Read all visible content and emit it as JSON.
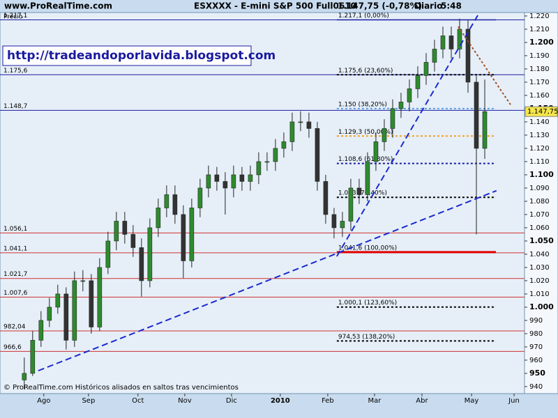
{
  "header": {
    "site": "www.ProRealTime.com",
    "instrument": "ESXXXX - E-mini S&P 500 Full0610",
    "last": "1.147,75 (-0,78%)",
    "period": "Diario",
    "time": "5:48"
  },
  "chart_data": {
    "type": "candlestick",
    "y_label": "Precio",
    "url": "http://tradeandoporlavida.blogspot.com",
    "footer": "© ProRealTime.com Históricos alisados en saltos tras vencimientos",
    "open": [
      945,
      950,
      975,
      990,
      1000,
      1010,
      975,
      1020,
      1020,
      985,
      1030,
      1050,
      1065,
      1055,
      1045,
      1020,
      1060,
      1075,
      1085,
      1070,
      1035,
      1075,
      1090,
      1100,
      1095,
      1090,
      1100,
      1095,
      1100,
      1110,
      1110,
      1120,
      1125,
      1140,
      1140,
      1135,
      1095,
      1070,
      1060,
      1065,
      1090,
      1085,
      1110,
      1125,
      1135,
      1150,
      1155,
      1165,
      1175,
      1185,
      1195,
      1205,
      1195,
      1210,
      1170,
      1120
    ],
    "high": [
      962,
      982,
      997,
      1007,
      1017,
      1015,
      1027,
      1028,
      1025,
      1037,
      1057,
      1072,
      1072,
      1062,
      1052,
      1067,
      1082,
      1092,
      1092,
      1077,
      1082,
      1097,
      1107,
      1106,
      1102,
      1107,
      1106,
      1107,
      1117,
      1117,
      1127,
      1132,
      1147,
      1148,
      1147,
      1140,
      1100,
      1075,
      1072,
      1097,
      1097,
      1117,
      1132,
      1142,
      1157,
      1162,
      1172,
      1182,
      1192,
      1202,
      1212,
      1212,
      1218,
      1217,
      1175,
      1172
    ],
    "low": [
      938,
      948,
      970,
      985,
      995,
      968,
      970,
      1012,
      980,
      982,
      1025,
      1043,
      1048,
      1038,
      1008,
      1015,
      1053,
      1068,
      1063,
      1022,
      1030,
      1068,
      1083,
      1088,
      1070,
      1083,
      1088,
      1088,
      1093,
      1103,
      1103,
      1113,
      1118,
      1133,
      1128,
      1088,
      1063,
      1052,
      1053,
      1058,
      1078,
      1080,
      1103,
      1118,
      1128,
      1143,
      1148,
      1158,
      1168,
      1178,
      1188,
      1188,
      1188,
      1162,
      1055,
      1112
    ],
    "close": [
      950,
      975,
      990,
      1000,
      1010,
      975,
      1020,
      1020,
      985,
      1030,
      1050,
      1065,
      1055,
      1045,
      1020,
      1060,
      1075,
      1085,
      1070,
      1035,
      1075,
      1090,
      1100,
      1095,
      1090,
      1100,
      1095,
      1100,
      1110,
      1110,
      1120,
      1125,
      1140,
      1140,
      1135,
      1095,
      1070,
      1060,
      1065,
      1090,
      1085,
      1110,
      1125,
      1135,
      1150,
      1155,
      1165,
      1175,
      1185,
      1195,
      1205,
      1195,
      1210,
      1170,
      1120,
      1147.75
    ],
    "up_color": "#2e8b2e",
    "down_color": "#333333",
    "xlim": [
      -2.9,
      59.75
    ],
    "xticks": [
      {
        "value": 2.33,
        "label": "Ago"
      },
      {
        "value": 7.67,
        "label": "Sep"
      },
      {
        "value": 13.58,
        "label": "Oct"
      },
      {
        "value": 19.17,
        "label": "Nov"
      },
      {
        "value": 24.75,
        "label": "Dic"
      },
      {
        "value": 30.58,
        "label": "2010"
      },
      {
        "value": 36.25,
        "label": "Feb"
      },
      {
        "value": 41.83,
        "label": "Mar"
      },
      {
        "value": 47.5,
        "label": "Abr"
      },
      {
        "value": 53.42,
        "label": "May"
      },
      {
        "value": 58.5,
        "label": "Jun"
      }
    ],
    "ylim": [
      934.7,
      1222.6
    ],
    "yticks": [
      940,
      950,
      960,
      970,
      980,
      990,
      {
        "value": 1000,
        "label": "1.000"
      },
      {
        "value": 1010,
        "label": "1.010"
      },
      {
        "value": 1020,
        "label": "1.020"
      },
      {
        "value": 1030,
        "label": "1.030"
      },
      {
        "value": 1040,
        "label": "1.040"
      },
      {
        "value": 1050,
        "label": "1.050"
      },
      {
        "value": 1060,
        "label": "1.060"
      },
      {
        "value": 1070,
        "label": "1.070"
      },
      {
        "value": 1080,
        "label": "1.080"
      },
      {
        "value": 1090,
        "label": "1.090"
      },
      {
        "value": 1100,
        "label": "1.100"
      },
      {
        "value": 1110,
        "label": "1.110"
      },
      {
        "value": 1120,
        "label": "1.120"
      },
      {
        "value": 1130,
        "label": "1.130"
      },
      {
        "value": 1140,
        "label": "1.140"
      },
      {
        "value": 1150,
        "label": "1.150"
      },
      {
        "value": 1160,
        "label": "1.160"
      },
      {
        "value": 1170,
        "label": "1.170"
      },
      {
        "value": 1180,
        "label": "1.180"
      },
      {
        "value": 1190,
        "label": "1.190"
      },
      {
        "value": 1200,
        "label": "1.200"
      },
      {
        "value": 1210,
        "label": "1.210"
      },
      {
        "value": 1220,
        "label": "1.220"
      }
    ],
    "last_price": {
      "value": 1147.75,
      "label": "1.147,75"
    },
    "levels": [
      {
        "value": 1217.1,
        "label": "1.217,1",
        "color": "#1a1aa0"
      },
      {
        "value": 1175.6,
        "label": "1.175,6",
        "color": "#1a1aa0"
      },
      {
        "value": 1148.7,
        "label": "1.148,7",
        "color": "#1a1aa0"
      },
      {
        "value": 1056.1,
        "label": "1.056,1",
        "color": "#d03030"
      },
      {
        "value": 1041.1,
        "label": "1.041,1",
        "color": "#d03030"
      },
      {
        "value": 1021.7,
        "label": "1.021,7",
        "color": "#d03030"
      },
      {
        "value": 1007.6,
        "label": "1.007,6",
        "color": "#d03030"
      },
      {
        "value": 982.04,
        "label": "982,04",
        "color": "#d03030"
      },
      {
        "value": 966.6,
        "label": "966,6",
        "color": "#d03030"
      }
    ],
    "fibonacci": [
      {
        "value": 1217.1,
        "label": "1.217,1 (0,00%)",
        "color": "#1a1aa0",
        "style": "solid"
      },
      {
        "value": 1175.6,
        "label": "1.175,6 (23,60%)",
        "color": "#000000",
        "style": "dotted"
      },
      {
        "value": 1150,
        "label": "1.150 (38,20%)",
        "color": "#5aa0e0",
        "style": "dotted"
      },
      {
        "value": 1129.3,
        "label": "1.129,3 (50,00%)",
        "color": "#f0a020",
        "style": "dotted"
      },
      {
        "value": 1108.6,
        "label": "1.108,6 (61,80%)",
        "color": "#1a1aa0",
        "style": "dotted"
      },
      {
        "value": 1083,
        "label": "1.083 (76,40%)",
        "color": "#000000",
        "style": "dotted"
      },
      {
        "value": 1041.6,
        "label": "1.041,6 (100,00%)",
        "color": "#e00000",
        "style": "solid"
      },
      {
        "value": 1000.1,
        "label": "1.000,1 (123,60%)",
        "color": "#000000",
        "style": "dotted"
      },
      {
        "value": 974.53,
        "label": "974,53 (138,20%)",
        "color": "#000000",
        "style": "dotted"
      }
    ],
    "fib_x": [
      37.33,
      56.33
    ],
    "trendlines": [
      {
        "x": [
          1.67,
          56.4
        ],
        "y": [
          952,
          1088
        ],
        "color": "#1a2ad0",
        "style": "dashed"
      },
      {
        "x": [
          37.33,
          54.17
        ],
        "y": [
          1038.4,
          1220.5
        ],
        "color": "#1a2ad0",
        "style": "dashed"
      },
      {
        "x": [
          51.83,
          58.08
        ],
        "y": [
          1212,
          1153
        ],
        "color": "#a05020",
        "style": "dotted"
      }
    ]
  }
}
